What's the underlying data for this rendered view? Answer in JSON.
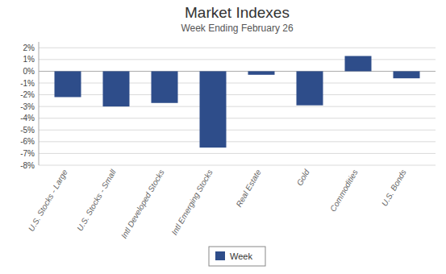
{
  "chart_data": {
    "type": "bar",
    "title": "Market Indexes",
    "subtitle": "Week Ending February 26",
    "categories": [
      "U.S. Stocks - Large",
      "U.S. Stocks - Small",
      "Intl Developed Stocks",
      "Intl Emerging Stocks",
      "Real Estate",
      "Gold",
      "Commodities",
      "U.S. Bonds"
    ],
    "series": [
      {
        "name": "Week",
        "color": "#2E4D8A",
        "values": [
          -2.2,
          -3.0,
          -2.7,
          -6.5,
          -0.3,
          -2.9,
          1.3,
          -0.6
        ]
      }
    ],
    "ylim": [
      -8,
      2.5
    ],
    "yticks": [
      {
        "value": -8,
        "label": "-8%"
      },
      {
        "value": -7,
        "label": "-7%"
      },
      {
        "value": -6,
        "label": "-6%"
      },
      {
        "value": -5,
        "label": "-5%"
      },
      {
        "value": -4,
        "label": "-4%"
      },
      {
        "value": -3,
        "label": "-3%"
      },
      {
        "value": -2,
        "label": "-2%"
      },
      {
        "value": -1,
        "label": "-1%"
      },
      {
        "value": 0,
        "label": "0%"
      },
      {
        "value": 1,
        "label": "1%"
      },
      {
        "value": 2,
        "label": "2%"
      }
    ],
    "grid": true,
    "legend": "bottom"
  }
}
